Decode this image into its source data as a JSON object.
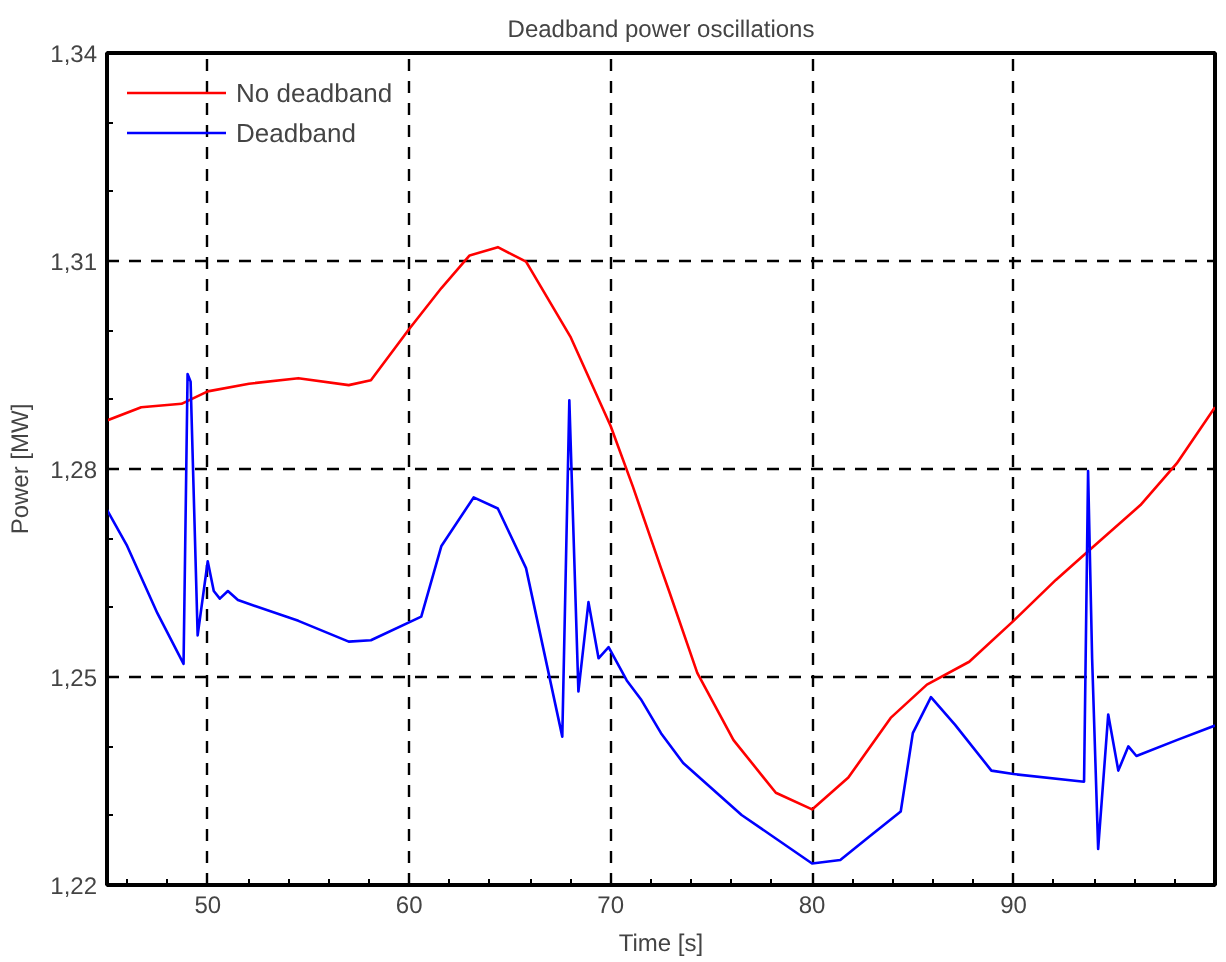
{
  "chart_data": {
    "type": "line",
    "title": "Deadband power oscillations",
    "xlabel": "Time [s]",
    "ylabel": "Power [MW]",
    "xlim": [
      45,
      100
    ],
    "ylim": [
      1.22,
      1.34
    ],
    "xticks": [
      {
        "value": 46,
        "label": null
      },
      {
        "value": 48,
        "label": null
      },
      50,
      {
        "value": 52,
        "label": null
      },
      {
        "value": 54,
        "label": null
      },
      {
        "value": 56,
        "label": null
      },
      {
        "value": 58,
        "label": null
      },
      60,
      {
        "value": 62,
        "label": null
      },
      {
        "value": 64,
        "label": null
      },
      {
        "value": 66,
        "label": null
      },
      {
        "value": 68,
        "label": null
      },
      70,
      {
        "value": 72,
        "label": null
      },
      {
        "value": 74,
        "label": null
      },
      {
        "value": 76,
        "label": null
      },
      {
        "value": 78,
        "label": null
      },
      80,
      {
        "value": 82,
        "label": null
      },
      {
        "value": 84,
        "label": null
      },
      {
        "value": 86,
        "label": null
      },
      {
        "value": 88,
        "label": null
      },
      90,
      {
        "value": 92,
        "label": null
      },
      {
        "value": 94,
        "label": null
      },
      {
        "value": 96,
        "label": null
      },
      {
        "value": 98,
        "label": null
      }
    ],
    "yticks": [
      {
        "value": 1.22,
        "label": "1,22"
      },
      {
        "value": 1.23,
        "label": null
      },
      {
        "value": 1.24,
        "label": null
      },
      {
        "value": 1.25,
        "label": "1,25"
      },
      {
        "value": 1.26,
        "label": null
      },
      {
        "value": 1.27,
        "label": null
      },
      {
        "value": 1.28,
        "label": "1,28"
      },
      {
        "value": 1.29,
        "label": null
      },
      {
        "value": 1.3,
        "label": null
      },
      {
        "value": 1.31,
        "label": "1,31"
      },
      {
        "value": 1.32,
        "label": null
      },
      {
        "value": 1.33,
        "label": null
      },
      {
        "value": 1.34,
        "label": "1,34"
      }
    ],
    "grid": true,
    "legend": "top left",
    "marker": "none",
    "series": [
      {
        "name": "No deadband",
        "color": "#ff0000",
        "x": [
          45,
          46.7,
          48.7,
          50,
          52.05,
          54.5,
          57,
          58.1,
          60,
          61.6,
          63,
          64.4,
          65.8,
          68,
          70,
          71.1,
          72.5,
          72.9,
          74.3,
          76.1,
          78.2,
          80,
          81.8,
          83.9,
          85.7,
          87.8,
          90,
          92.1,
          93.8,
          96.3,
          98.1,
          100
        ],
        "values": [
          1.287,
          1.2889,
          1.2894,
          1.2912,
          1.2923,
          1.2931,
          1.2921,
          1.2928,
          1.3002,
          1.3061,
          1.3108,
          1.312,
          1.3099,
          1.2991,
          1.2862,
          1.2775,
          1.2657,
          1.2624,
          1.2506,
          1.2409,
          1.2333,
          1.2309,
          1.2355,
          1.2441,
          1.2489,
          1.2522,
          1.2581,
          1.264,
          1.2684,
          1.2748,
          1.2808,
          1.2889
        ]
      },
      {
        "name": "Deadband",
        "color": "#0000ff",
        "x": [
          45,
          46,
          47.5,
          48.8,
          49,
          49.15,
          49.5,
          50,
          50.3,
          50.6,
          51,
          51.5,
          54.5,
          57,
          58.1,
          60.6,
          61.6,
          63.2,
          64.4,
          65.8,
          67.6,
          67.95,
          68.4,
          68.9,
          69.4,
          69.9,
          70.8,
          71.5,
          72.5,
          73.6,
          76.5,
          80,
          81.4,
          82.8,
          84.4,
          85,
          85.9,
          87.1,
          88.9,
          90,
          93.5,
          93.7,
          93.9,
          94.2,
          94.7,
          95.2,
          95.7,
          96.1,
          98.1,
          100
        ],
        "values": [
          1.2741,
          1.2689,
          1.2592,
          1.2519,
          1.2937,
          1.2926,
          1.256,
          1.2667,
          1.2624,
          1.2613,
          1.2624,
          1.2611,
          1.2581,
          1.2551,
          1.2553,
          1.2587,
          1.2689,
          1.2759,
          1.2743,
          1.2657,
          1.2414,
          1.2899,
          1.2479,
          1.2608,
          1.2527,
          1.2543,
          1.2495,
          1.2468,
          1.2419,
          1.2376,
          1.2301,
          1.2231,
          1.2236,
          1.2269,
          1.2306,
          1.2419,
          1.2471,
          1.2431,
          1.2365,
          1.236,
          1.2349,
          1.2797,
          1.2527,
          1.2252,
          1.2446,
          1.2365,
          1.24,
          1.2386,
          1.2409,
          1.243
        ]
      }
    ]
  }
}
